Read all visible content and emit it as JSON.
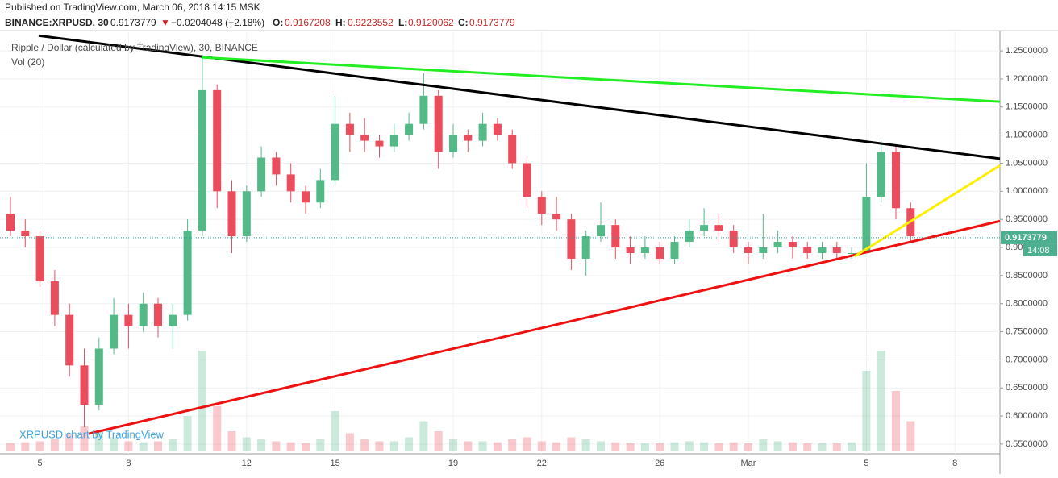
{
  "header": {
    "published": "Published on TradingView.com, March 06, 2018 14:15 MSK",
    "symbol": "BINANCE:XRPUSD, 30",
    "last": "0.9173779",
    "arrow": "▼",
    "change": "−0.0204048 (−2.18%)",
    "o_label": "O:",
    "o": "0.9167208",
    "h_label": "H:",
    "h": "0.9223552",
    "l_label": "L:",
    "l": "0.9120062",
    "c_label": "C:",
    "c": "0.9173779"
  },
  "chart_data": {
    "type": "candlestick",
    "legend_title": "Ripple / Dollar (calculated by TradingView), 30, BINANCE",
    "volume_label": "Vol (20)",
    "watermark": "XRPUSD chart by TradingView",
    "last_price": 0.9173779,
    "last_price_label": "0.9173779",
    "countdown": "14:08",
    "up_color": "#53b987",
    "down_color": "#eb4d5c",
    "grid": true,
    "categories": [
      null,
      null,
      "5",
      null,
      null,
      null,
      null,
      null,
      "8",
      null,
      null,
      null,
      null,
      null,
      null,
      null,
      "12",
      null,
      null,
      null,
      null,
      null,
      "15",
      null,
      null,
      null,
      null,
      null,
      null,
      null,
      "19",
      null,
      null,
      null,
      null,
      null,
      "22",
      null,
      null,
      null,
      null,
      null,
      null,
      null,
      "26",
      null,
      null,
      null,
      null,
      null,
      "Mar",
      null,
      null,
      null,
      null,
      null,
      null,
      null,
      "5",
      null,
      null,
      null,
      null,
      null,
      "8",
      null,
      null,
      null
    ],
    "open": [
      0.96,
      0.93,
      0.92,
      0.84,
      0.78,
      0.69,
      0.62,
      0.72,
      0.78,
      0.76,
      0.8,
      0.76,
      0.78,
      0.93,
      1.18,
      1.0,
      0.92,
      1.0,
      1.06,
      1.03,
      1.0,
      0.98,
      1.02,
      1.12,
      1.1,
      1.09,
      1.08,
      1.1,
      1.12,
      1.17,
      1.07,
      1.1,
      1.09,
      1.12,
      1.1,
      1.05,
      0.99,
      0.96,
      0.95,
      0.88,
      0.92,
      0.94,
      0.9,
      0.89,
      0.9,
      0.88,
      0.91,
      0.93,
      0.94,
      0.93,
      0.9,
      0.89,
      0.9,
      0.91,
      0.9,
      0.89,
      0.9,
      0.89,
      0.89,
      0.99,
      1.07,
      0.97,
      null,
      null,
      null,
      null,
      null,
      null
    ],
    "high": [
      0.99,
      0.95,
      0.93,
      0.86,
      0.8,
      0.72,
      0.74,
      0.81,
      0.8,
      0.82,
      0.81,
      0.8,
      0.95,
      1.24,
      1.19,
      1.02,
      1.01,
      1.08,
      1.07,
      1.05,
      1.01,
      1.04,
      1.17,
      1.14,
      1.13,
      1.1,
      1.12,
      1.14,
      1.21,
      1.18,
      1.12,
      1.11,
      1.14,
      1.13,
      1.11,
      1.06,
      1.0,
      0.99,
      0.96,
      0.93,
      0.98,
      0.95,
      0.92,
      0.92,
      0.91,
      0.92,
      0.95,
      0.97,
      0.96,
      0.94,
      0.91,
      0.96,
      0.93,
      0.92,
      0.91,
      0.91,
      0.91,
      0.9,
      1.05,
      1.09,
      1.08,
      0.98,
      null,
      null,
      null,
      null,
      null,
      null
    ],
    "low": [
      0.92,
      0.9,
      0.83,
      0.76,
      0.67,
      0.58,
      0.61,
      0.71,
      0.72,
      0.75,
      0.74,
      0.72,
      0.77,
      0.92,
      0.97,
      0.89,
      0.91,
      0.99,
      1.01,
      0.98,
      0.96,
      0.97,
      1.01,
      1.07,
      1.07,
      1.06,
      1.07,
      1.09,
      1.11,
      1.04,
      1.06,
      1.07,
      1.08,
      1.09,
      1.04,
      0.97,
      0.94,
      0.93,
      0.86,
      0.85,
      0.91,
      0.88,
      0.87,
      0.88,
      0.87,
      0.87,
      0.9,
      0.92,
      0.91,
      0.89,
      0.87,
      0.88,
      0.89,
      0.88,
      0.88,
      0.88,
      0.88,
      0.88,
      0.89,
      0.98,
      0.95,
      0.91,
      null,
      null,
      null,
      null,
      null,
      null
    ],
    "close": [
      0.93,
      0.92,
      0.84,
      0.78,
      0.69,
      0.62,
      0.72,
      0.78,
      0.76,
      0.8,
      0.76,
      0.78,
      0.93,
      1.18,
      1.0,
      0.92,
      1.0,
      1.06,
      1.03,
      1.0,
      0.98,
      1.02,
      1.12,
      1.1,
      1.09,
      1.08,
      1.1,
      1.12,
      1.17,
      1.07,
      1.1,
      1.09,
      1.12,
      1.1,
      1.05,
      0.99,
      0.96,
      0.95,
      0.88,
      0.92,
      0.94,
      0.9,
      0.89,
      0.9,
      0.88,
      0.91,
      0.93,
      0.94,
      0.93,
      0.9,
      0.89,
      0.9,
      0.91,
      0.9,
      0.89,
      0.9,
      0.89,
      0.89,
      0.99,
      1.07,
      0.97,
      0.92,
      null,
      null,
      null,
      null,
      null,
      null
    ],
    "volume": [
      8,
      9,
      10,
      12,
      18,
      25,
      20,
      14,
      10,
      9,
      10,
      12,
      35,
      100,
      45,
      20,
      14,
      12,
      10,
      9,
      8,
      12,
      40,
      18,
      12,
      10,
      10,
      14,
      30,
      20,
      12,
      10,
      10,
      9,
      12,
      14,
      10,
      9,
      14,
      12,
      10,
      9,
      8,
      8,
      8,
      9,
      10,
      9,
      8,
      9,
      8,
      12,
      10,
      9,
      8,
      8,
      8,
      9,
      80,
      100,
      60,
      30,
      null,
      null,
      null,
      null,
      null,
      null
    ],
    "trendlines": [
      {
        "color": "#000000",
        "points": [
          [
            1.91,
            1.277
          ],
          [
            67.05,
            1.058
          ]
        ]
      },
      {
        "color": "#22ee22",
        "points": [
          [
            12.95,
            1.2385
          ],
          [
            67.05,
            1.1596
          ]
        ]
      },
      {
        "color": "#ee1111",
        "points": [
          [
            5.3,
            0.5685
          ],
          [
            67.05,
            0.947
          ]
        ]
      },
      {
        "color": "#ffee00",
        "points": [
          [
            57.2,
            0.884
          ],
          [
            67.05,
            1.046
          ]
        ]
      }
    ],
    "ylim": [
      0.537,
      1.286
    ],
    "yticks": [
      {
        "value": 0.55,
        "label": "0.5500000"
      },
      {
        "value": 0.6,
        "label": "0.6000000"
      },
      {
        "value": 0.65,
        "label": "0.6500000"
      },
      {
        "value": 0.7,
        "label": "0.7000000"
      },
      {
        "value": 0.75,
        "label": "0.7500000"
      },
      {
        "value": 0.8,
        "label": "0.8000000"
      },
      {
        "value": 0.85,
        "label": "0.8500000"
      },
      {
        "value": 0.9,
        "label": "0.9000000"
      },
      {
        "value": 0.95,
        "label": "0.9500000"
      },
      {
        "value": 1.0,
        "label": "1.0000000"
      },
      {
        "value": 1.05,
        "label": "1.0500000"
      },
      {
        "value": 1.1,
        "label": "1.1000000"
      },
      {
        "value": 1.15,
        "label": "1.1500000"
      },
      {
        "value": 1.2,
        "label": "1.2000000"
      },
      {
        "value": 1.25,
        "label": "1.2500000"
      }
    ]
  }
}
